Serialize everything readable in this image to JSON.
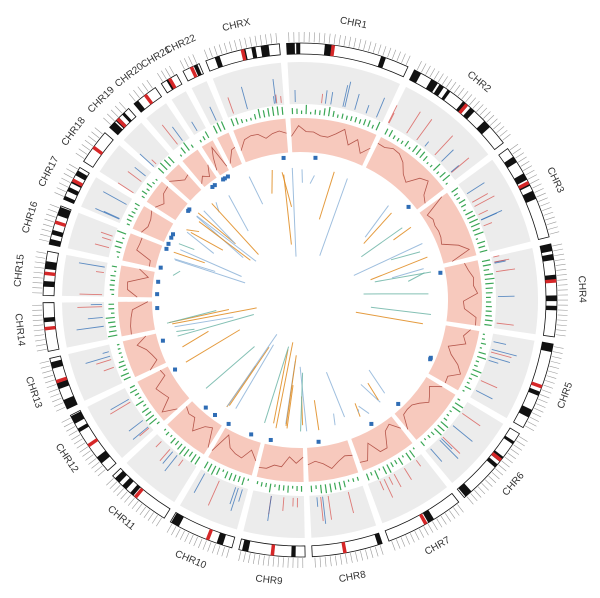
{
  "diagram": {
    "type": "circos-genome-plot",
    "chromosomes": [
      {
        "id": "CHR1",
        "label": "CHR1"
      },
      {
        "id": "CHR2",
        "label": "CHR2"
      },
      {
        "id": "CHR3",
        "label": "CHR3"
      },
      {
        "id": "CHR4",
        "label": "CHR4"
      },
      {
        "id": "CHR5",
        "label": "CHR5"
      },
      {
        "id": "CHR6",
        "label": "CHR6"
      },
      {
        "id": "CHR7",
        "label": "CHR7"
      },
      {
        "id": "CHR8",
        "label": "CHR8"
      },
      {
        "id": "CHR9",
        "label": "CHR9"
      },
      {
        "id": "CHR10",
        "label": "CHR10"
      },
      {
        "id": "CHR11",
        "label": "CHR11"
      },
      {
        "id": "CHR12",
        "label": "CHR12"
      },
      {
        "id": "CHR13",
        "label": "CHR13"
      },
      {
        "id": "CHR14",
        "label": "CHR14"
      },
      {
        "id": "CHR15",
        "label": "CHR15"
      },
      {
        "id": "CHR16",
        "label": "CHR16"
      },
      {
        "id": "CHR17",
        "label": "CHR17"
      },
      {
        "id": "CHR18",
        "label": "CHR18"
      },
      {
        "id": "CHR19",
        "label": "CHR19"
      },
      {
        "id": "CHR20",
        "label": "CHR20"
      },
      {
        "id": "CHR21",
        "label": "CHR21"
      },
      {
        "id": "CHR22",
        "label": "CHR22"
      },
      {
        "id": "CHRX",
        "label": "CHRX"
      }
    ],
    "colors": {
      "ideogram_dark": "#111111",
      "ideogram_centromere": "#d62728",
      "ideogram_light": "#ffffff",
      "gray_track": "#ececec",
      "green_marks": "#3aa655",
      "pink_track": "#f7c9bd",
      "pink_line": "#b5564b",
      "blue_marks": "#2f6db5",
      "link_orange": "#e08a1e",
      "link_blue": "#8fb4d9",
      "link_teal": "#6fb6a8",
      "link_red": "#d9534f"
    }
  }
}
